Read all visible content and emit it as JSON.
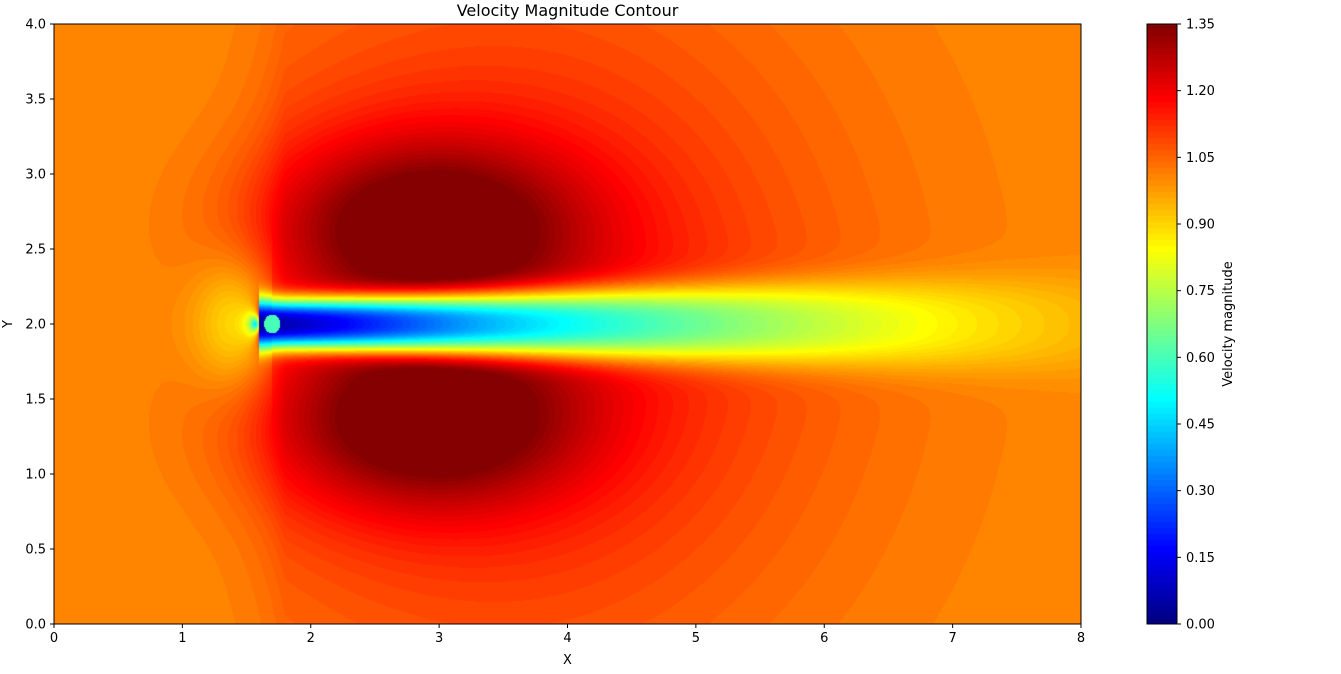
{
  "chart_data": {
    "type": "heatmap",
    "subtype": "filled-contour",
    "title": "Velocity Magnitude Contour",
    "xlabel": "X",
    "ylabel": "Y",
    "xlim": [
      0,
      8
    ],
    "ylim": [
      0,
      4
    ],
    "x_ticks": [
      0,
      1,
      2,
      3,
      4,
      5,
      6,
      7,
      8
    ],
    "y_ticks": [
      0.0,
      0.5,
      1.0,
      1.5,
      2.0,
      2.5,
      3.0,
      3.5,
      4.0
    ],
    "colormap": "jet",
    "colorbar": {
      "label": "Velocity magnitude",
      "vmin": 0.0,
      "vmax": 1.35,
      "ticks": [
        0.0,
        0.15,
        0.3,
        0.45,
        0.6,
        0.75,
        0.9,
        1.05,
        1.2,
        1.35
      ]
    },
    "field_description": {
      "freestream_value": 1.0,
      "obstacle_center": [
        1.7,
        2.0
      ],
      "wake_core_value": 0.05,
      "wake_end_value": 0.75,
      "wake_axis_y": 2.0,
      "max_value": 1.35,
      "max_locations": [
        [
          2.9,
          2.7
        ],
        [
          2.9,
          1.3
        ]
      ],
      "stagnation_region": [
        1.4,
        2.0
      ]
    }
  }
}
